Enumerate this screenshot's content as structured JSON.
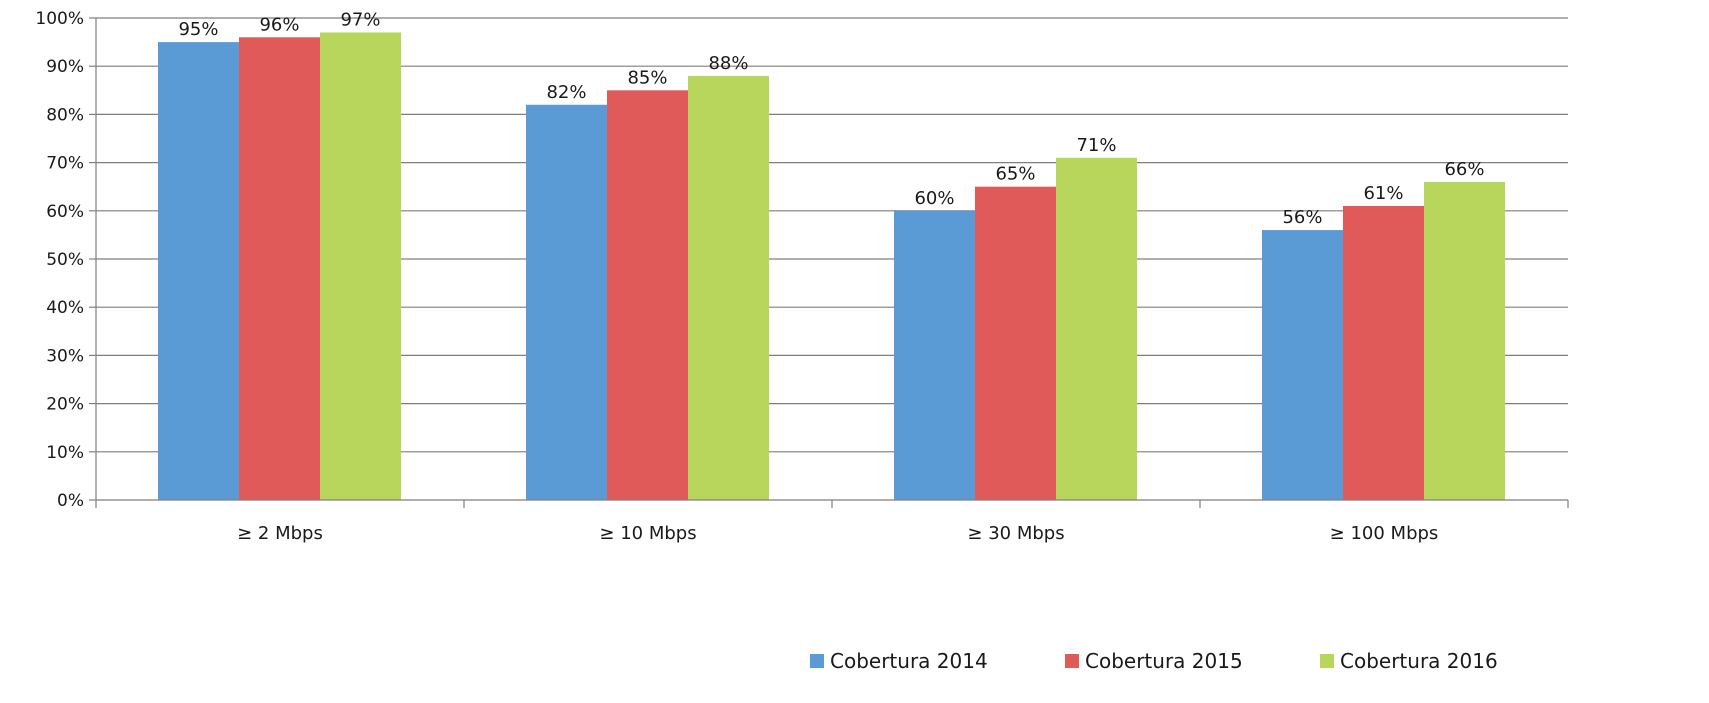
{
  "chart_data": {
    "type": "bar",
    "title": "",
    "xlabel": "",
    "ylabel": "",
    "categories": [
      "≥ 2 Mbps",
      "≥ 10 Mbps",
      "≥ 30 Mbps",
      "≥ 100 Mbps"
    ],
    "series": [
      {
        "name": "Cobertura 2014",
        "color": "#5b9bd5",
        "values": [
          95,
          82,
          60,
          56
        ],
        "labels": [
          "95%",
          "82%",
          "60%",
          "56%"
        ]
      },
      {
        "name": "Cobertura 2015",
        "color": "#e05a5a",
        "values": [
          96,
          85,
          65,
          61
        ],
        "labels": [
          "96%",
          "85%",
          "65%",
          "61%"
        ]
      },
      {
        "name": "Cobertura 2016",
        "color": "#b8d65c",
        "values": [
          97,
          88,
          71,
          66
        ],
        "labels": [
          "97%",
          "88%",
          "71%",
          "66%"
        ]
      }
    ],
    "y_ticks": [
      "0%",
      "10%",
      "20%",
      "30%",
      "40%",
      "50%",
      "60%",
      "70%",
      "80%",
      "90%",
      "100%"
    ],
    "ylim": [
      0,
      100
    ],
    "grid": true,
    "gridline_color": "#7f7f7f",
    "legend_position": "bottom-right"
  }
}
